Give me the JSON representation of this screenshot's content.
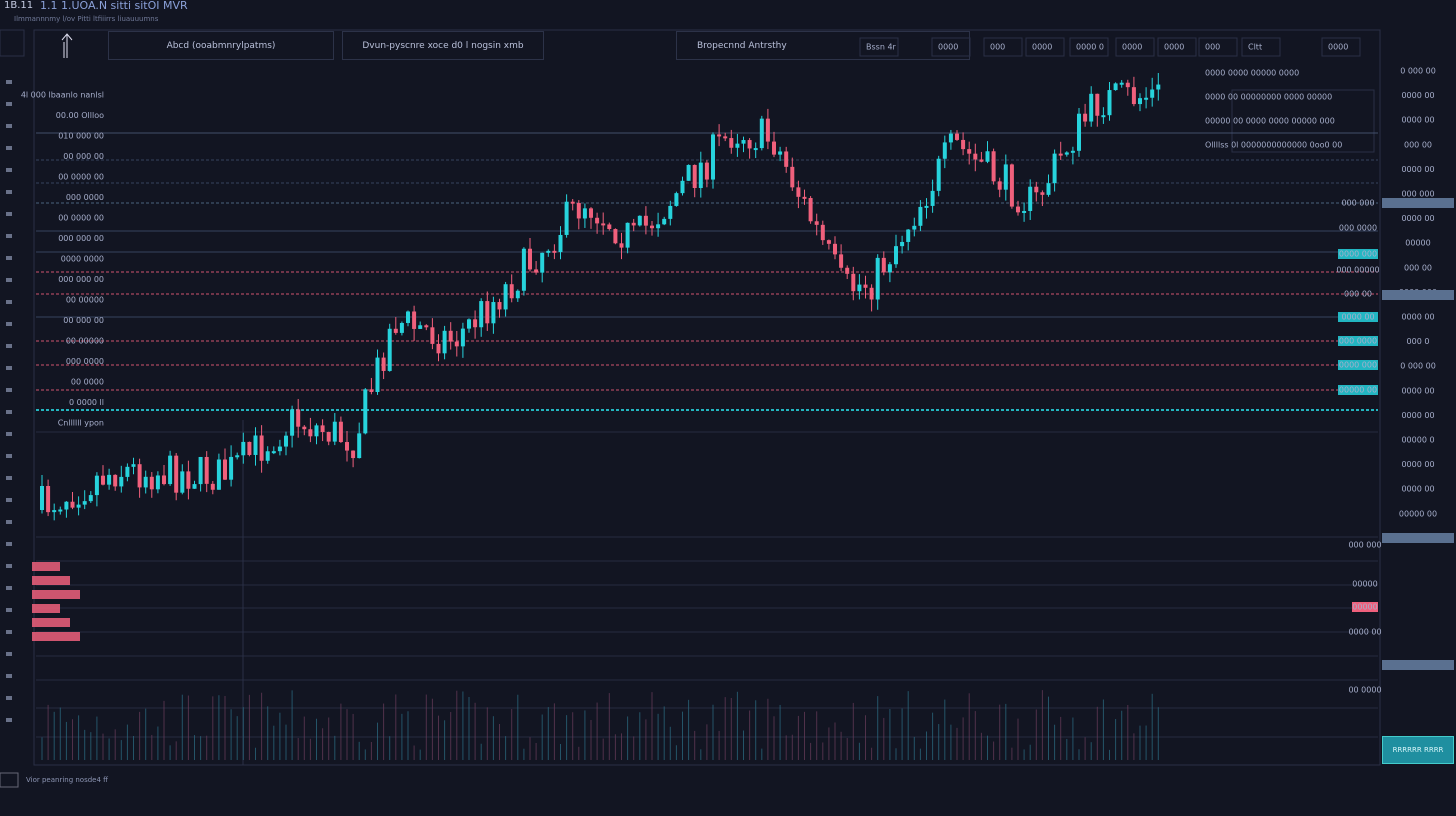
{
  "header": {
    "corner": "1B.11",
    "title": "1.1  1.UOA.N  sitti  sitOI MVR",
    "subtitle": "Ilmmannnmy l/ov Pitti ltfiiirrs liuauuumns"
  },
  "tabs": [
    "Abcd (ooabmnrylpatms)",
    "Dvun-pyscnre xoce d0 l nogsin xmb",
    "Bropecnnd  Antrsthy"
  ],
  "toolbar": [
    "Bssn 4r",
    "0000",
    "000",
    "0000",
    "0000 0",
    "0000",
    "0000",
    "000",
    "Cltt",
    "0000"
  ],
  "info_box": [
    "0000 0000 00000 0000",
    "0000 00 00000000 0000 00000",
    "00000 00 0000 0000 00000 000",
    "Ollllss 0l 0000000000000 0oo0 00"
  ],
  "left_labels": [
    "4l 000 lbaanlo nanlsl",
    "00.00 Ollloo",
    "010 000 00",
    "00 000 00",
    "00 0000 00",
    "000 0000",
    "00 0000 00",
    "000 000 00",
    "0000 0000",
    "000 000 00",
    "00 00000",
    "00 000 00",
    "00 00000",
    "000 0000",
    "00 0000",
    "0 0000 ll",
    "Cnllllll ypon"
  ],
  "right_labels": [
    "0 000 00",
    "0000 00",
    "0000 00",
    "000 00",
    "0000 00",
    "000 000",
    "0000 00",
    "00000",
    "000 00",
    "0000 000",
    "0000 00",
    "000 0",
    "0 000 00",
    "0000 00",
    "0000 00",
    "00000 0",
    "0000 00",
    "0000 00",
    "00000 00"
  ],
  "level_tags": [
    "000 000",
    "000 0000",
    "0000 000",
    "000 00000",
    "000 00",
    "0000 00",
    "000 0000",
    "0000 000",
    "00000 00"
  ],
  "lower_tags": [
    "000 000",
    "00000",
    "00000",
    "0000 00",
    "00 0000"
  ],
  "footer": {
    "status": "Vior peanring nosde4 ff",
    "button": "RRRRRR RRRR"
  }
}
